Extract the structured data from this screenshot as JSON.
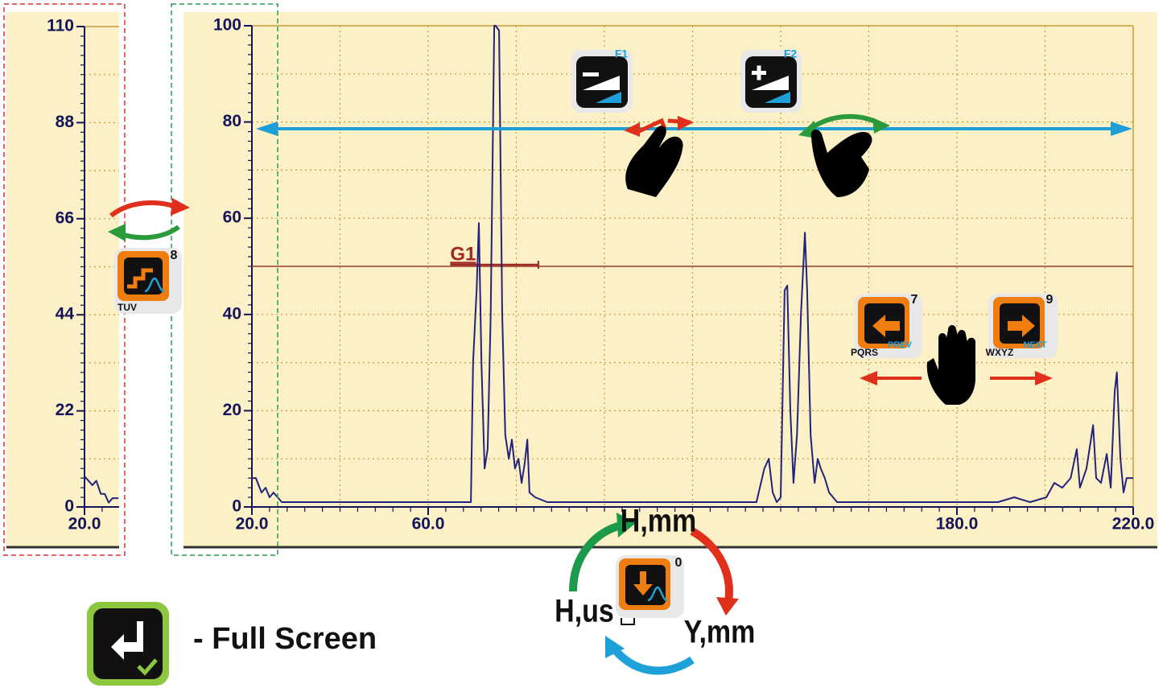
{
  "chart_data": [
    {
      "type": "line",
      "line_color": "#23237e",
      "grid": true,
      "xlim": [
        20,
        220
      ],
      "ylim": [
        0,
        100
      ],
      "xticks": [
        {
          "value": 20,
          "label": "20.0"
        },
        {
          "value": 60,
          "label": "60.0"
        },
        {
          "value": 180,
          "label": "180.0"
        },
        {
          "value": 220,
          "label": "220.0"
        }
      ],
      "yticks": [
        0,
        20,
        40,
        60,
        80,
        100
      ],
      "x": [
        20.0,
        20.9,
        22.2,
        23.1,
        24.0,
        24.9,
        26.8,
        28.6,
        69.7,
        70.2,
        71.0,
        71.5,
        72.1,
        72.8,
        73.5,
        74.2,
        75.0,
        75.3,
        76.1,
        76.8,
        77.5,
        78.3,
        79.0,
        79.7,
        80.5,
        81.2,
        81.9,
        82.5,
        83.0,
        84.3,
        87.0,
        90.7,
        134.5,
        136.3,
        137.3,
        138.2,
        139.1,
        140.0,
        140.9,
        141.5,
        142.2,
        142.9,
        143.7,
        144.6,
        145.5,
        146.0,
        146.8,
        147.7,
        148.4,
        149.1,
        150.0,
        151.0,
        152.8,
        163.7,
        189.3,
        193.0,
        196.6,
        200.3,
        202.1,
        203.9,
        205.8,
        207.2,
        207.9,
        209.4,
        210.9,
        211.6,
        212.7,
        214.0,
        214.9,
        215.8,
        216.3,
        217.1,
        217.8,
        218.5,
        220.0
      ],
      "values": [
        6,
        6,
        3,
        4,
        2,
        3,
        1,
        1,
        1,
        30,
        45,
        59,
        30,
        8,
        12,
        40,
        100,
        100,
        99,
        40,
        15,
        10,
        14,
        8,
        10,
        5,
        9,
        14,
        3,
        2,
        1,
        1,
        1,
        8,
        10,
        3,
        1,
        2,
        45,
        46,
        20,
        5,
        15,
        40,
        57,
        45,
        15,
        5,
        10,
        8,
        6,
        3,
        1,
        1,
        1,
        2,
        1,
        2,
        5,
        4,
        6,
        12,
        4,
        8,
        17,
        6,
        5,
        11,
        4,
        24,
        28,
        10,
        3,
        6,
        6
      ],
      "gate": {
        "label": "G1",
        "start": 65,
        "end": 85,
        "level": 50
      }
    },
    {
      "type": "line",
      "line_color": "#23237e",
      "grid": true,
      "xlim": [
        20,
        27.7
      ],
      "ylim": [
        0,
        110
      ],
      "xticks": [
        {
          "value": 20,
          "label": "20.0"
        }
      ],
      "yticks": [
        0,
        22,
        44,
        66,
        88,
        110
      ],
      "x": [
        20.0,
        20.9,
        21.8,
        22.7,
        23.7,
        24.6,
        25.5,
        26.4,
        27.7
      ],
      "values": [
        7,
        6,
        5,
        6,
        3,
        3,
        1,
        2,
        2
      ]
    }
  ],
  "ui": {
    "f1": "F1",
    "f2": "F2",
    "key8": {
      "number": "8",
      "letters": "TUV"
    },
    "key7": {
      "number": "7",
      "letters": "PQRS",
      "caption": "PREV"
    },
    "key9": {
      "number": "9",
      "letters": "WXYZ",
      "caption": "NEXT"
    },
    "key0": {
      "number": "0"
    },
    "modes": [
      "H,mm",
      "Y,mm",
      "H,us"
    ],
    "full_screen": "- Full Screen"
  }
}
